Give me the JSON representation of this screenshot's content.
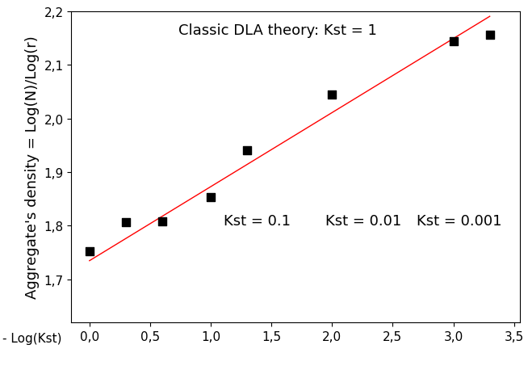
{
  "chart_data": {
    "type": "scatter",
    "y_label": "Aggregate's density = Log(N)/Log(r)",
    "x_label": "- Log(Kst)",
    "annotations": [
      "Classic DLA theory: Kst = 1",
      "Kst = 0.1",
      "Kst = 0.01",
      "Kst = 0.001"
    ],
    "series": [
      {
        "type": "scatter",
        "color": "#000000",
        "marker": "square",
        "x": [
          0.0,
          0.3,
          0.6,
          1.0,
          1.3,
          2.0,
          3.0,
          3.3
        ],
        "values": [
          1.752,
          1.806,
          1.808,
          1.853,
          1.941,
          2.044,
          2.143,
          2.155
        ]
      },
      {
        "type": "line",
        "color": "#ff0000",
        "line_style": "solid",
        "x": [
          0.0,
          3.3
        ],
        "values": [
          1.735,
          2.19
        ]
      }
    ],
    "xlim": [
      -0.15,
      3.55
    ],
    "xticks": [
      {
        "value": 0.0,
        "label": "0,0"
      },
      {
        "value": 0.5,
        "label": "0,5"
      },
      {
        "value": 1.0,
        "label": "1,0"
      },
      {
        "value": 1.5,
        "label": "1,5"
      },
      {
        "value": 2.0,
        "label": "2,0"
      },
      {
        "value": 2.5,
        "label": "2,5"
      },
      {
        "value": 3.0,
        "label": "3,0"
      },
      {
        "value": 3.5,
        "label": "3,5"
      }
    ],
    "ylim": [
      1.62,
      2.2
    ],
    "yticks": [
      {
        "value": 1.7,
        "label": "1,7"
      },
      {
        "value": 1.8,
        "label": "1,8"
      },
      {
        "value": 1.9,
        "label": "1,9"
      },
      {
        "value": 2.0,
        "label": "2,0"
      },
      {
        "value": 2.1,
        "label": "2,1"
      },
      {
        "value": 2.2,
        "label": "2,2"
      }
    ],
    "grid": false
  }
}
